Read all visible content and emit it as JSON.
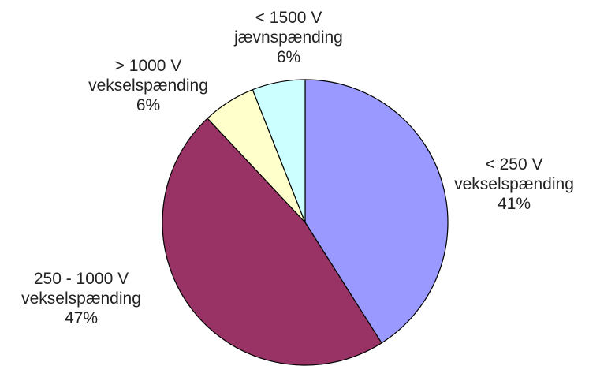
{
  "chart_data": {
    "type": "pie",
    "title": "",
    "start_angle_deg": 0,
    "direction": "clockwise",
    "slices": [
      {
        "label_lines": [
          "< 250 V",
          "vekselspænding"
        ],
        "value": 41,
        "value_label": "41%",
        "color": "#9999FF"
      },
      {
        "label_lines": [
          "250 - 1000 V",
          "vekselspænding"
        ],
        "value": 47,
        "value_label": "47%",
        "color": "#993366"
      },
      {
        "label_lines": [
          "> 1000 V",
          "vekselspænding"
        ],
        "value": 6,
        "value_label": "6%",
        "color": "#FFFFCC"
      },
      {
        "label_lines": [
          "< 1500 V",
          "jævnspænding"
        ],
        "value": 6,
        "value_label": "6%",
        "color": "#CCFFFF"
      }
    ]
  }
}
